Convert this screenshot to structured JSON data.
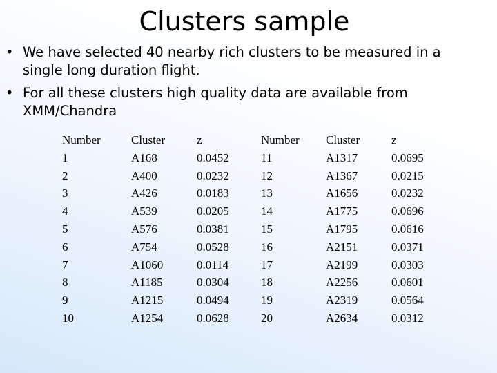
{
  "header": {
    "title": "Clusters sample"
  },
  "bullets": [
    "We have selected 40 nearby rich clusters to be measured in a single long duration flight.",
    "For all these clusters high quality data are available from XMM/Chandra"
  ],
  "table": {
    "columns": [
      "Number",
      "Cluster",
      "z",
      "Number",
      "Cluster",
      "z"
    ],
    "rows": [
      [
        "1",
        "A168",
        "0.0452",
        "11",
        "A1317",
        "0.0695"
      ],
      [
        "2",
        "A400",
        "0.0232",
        "12",
        "A1367",
        "0.0215"
      ],
      [
        "3",
        "A426",
        "0.0183",
        "13",
        "A1656",
        "0.0232"
      ],
      [
        "4",
        "A539",
        "0.0205",
        "14",
        "A1775",
        "0.0696"
      ],
      [
        "5",
        "A576",
        "0.0381",
        "15",
        "A1795",
        "0.0616"
      ],
      [
        "6",
        "A754",
        "0.0528",
        "16",
        "A2151",
        "0.0371"
      ],
      [
        "7",
        "A1060",
        "0.0114",
        "17",
        "A2199",
        "0.0303"
      ],
      [
        "8",
        "A1185",
        "0.0304",
        "18",
        "A2256",
        "0.0601"
      ],
      [
        "9",
        "A1215",
        "0.0494",
        "19",
        "A2319",
        "0.0564"
      ],
      [
        "10",
        "A1254",
        "0.0628",
        "20",
        "A2634",
        "0.0312"
      ]
    ]
  }
}
